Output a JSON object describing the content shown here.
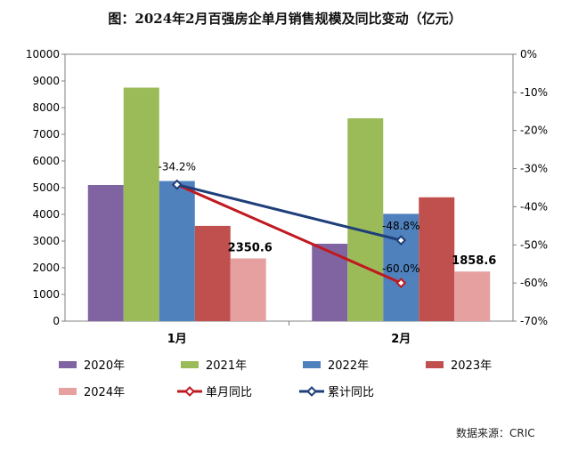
{
  "chart_data": {
    "type": "bar",
    "title": "图：2024年2月百强房企单月销售规模及同比变动（亿元）",
    "categories": [
      "1月",
      "2月"
    ],
    "series": [
      {
        "name": "2020年",
        "kind": "bar",
        "axis": "left",
        "color": "#8064A2",
        "values": [
          5100,
          2900
        ]
      },
      {
        "name": "2021年",
        "kind": "bar",
        "axis": "left",
        "color": "#9BBB59",
        "values": [
          8750,
          7600
        ]
      },
      {
        "name": "2022年",
        "kind": "bar",
        "axis": "left",
        "color": "#4F81BD",
        "values": [
          5250,
          4020
        ]
      },
      {
        "name": "2023年",
        "kind": "bar",
        "axis": "left",
        "color": "#C0504D",
        "values": [
          3570,
          4640
        ]
      },
      {
        "name": "2024年",
        "kind": "bar",
        "axis": "left",
        "color": "#E6A0A0",
        "values": [
          2350.6,
          1858.6
        ],
        "labels": [
          "2350.6",
          "1858.6"
        ]
      },
      {
        "name": "单月同比",
        "kind": "line",
        "axis": "right",
        "color": "#C0191F",
        "values": [
          -34.2,
          -60.0
        ],
        "labels": [
          "",
          "-60.0%"
        ]
      },
      {
        "name": "累计同比",
        "kind": "line",
        "axis": "right",
        "color": "#1F3F7A",
        "values": [
          -34.2,
          -48.8
        ],
        "labels": [
          "-34.2%",
          "-48.8%"
        ]
      }
    ],
    "y_left": {
      "min": 0,
      "max": 10000,
      "step": 1000
    },
    "y_right": {
      "min": -70,
      "max": 0,
      "step": 10,
      "unit": "%"
    },
    "legend": "bottom",
    "grid": false,
    "source": "数据来源：CRIC"
  }
}
